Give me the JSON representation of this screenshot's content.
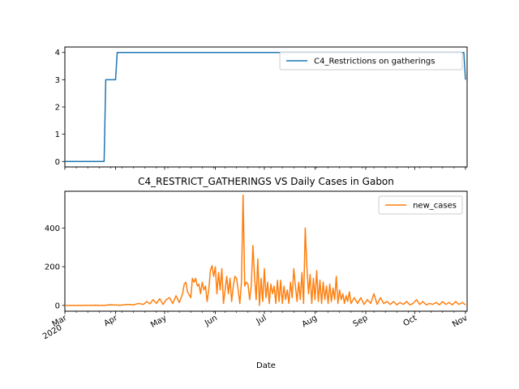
{
  "chart_data": [
    {
      "type": "line",
      "title": "",
      "xlabel": "",
      "ylabel": "",
      "ylim": [
        -0.2,
        4.2
      ],
      "yticks": [
        0,
        1,
        2,
        3,
        4
      ],
      "legend": "upper right",
      "series": [
        {
          "name": "C4_Restrictions on gatherings",
          "color": "#1f77b4",
          "points": [
            [
              "2020-03-01",
              0
            ],
            [
              "2020-03-25",
              0
            ],
            [
              "2020-03-26",
              3
            ],
            [
              "2020-04-01",
              3
            ],
            [
              "2020-04-02",
              4
            ],
            [
              "2020-10-31",
              4
            ],
            [
              "2020-11-01",
              3
            ]
          ]
        }
      ]
    },
    {
      "type": "line",
      "title": "C4_RESTRICT_GATHERINGS VS Daily Cases in Gabon",
      "xlabel": "Date",
      "ylabel": "",
      "ylim": [
        -30,
        590
      ],
      "yticks": [
        0,
        200,
        400
      ],
      "xlim": [
        "2020-03-01",
        "2020-11-02"
      ],
      "legend": "upper right",
      "x_ticks": [
        {
          "date": "2020-03-01",
          "label": "Mar",
          "sublabel": "2020"
        },
        {
          "date": "2020-04-01",
          "label": "Apr",
          "sublabel": ""
        },
        {
          "date": "2020-05-01",
          "label": "May",
          "sublabel": ""
        },
        {
          "date": "2020-06-01",
          "label": "Jun",
          "sublabel": ""
        },
        {
          "date": "2020-07-01",
          "label": "Jul",
          "sublabel": ""
        },
        {
          "date": "2020-08-01",
          "label": "Aug",
          "sublabel": ""
        },
        {
          "date": "2020-09-01",
          "label": "Sep",
          "sublabel": ""
        },
        {
          "date": "2020-10-01",
          "label": "Oct",
          "sublabel": ""
        },
        {
          "date": "2020-11-01",
          "label": "Nov",
          "sublabel": ""
        }
      ],
      "series": [
        {
          "name": "new_cases",
          "color": "#ff7f0e",
          "points": [
            [
              "2020-03-01",
              0
            ],
            [
              "2020-03-10",
              0
            ],
            [
              "2020-03-20",
              1
            ],
            [
              "2020-03-25",
              0
            ],
            [
              "2020-03-28",
              3
            ],
            [
              "2020-04-01",
              2
            ],
            [
              "2020-04-04",
              1
            ],
            [
              "2020-04-08",
              5
            ],
            [
              "2020-04-12",
              3
            ],
            [
              "2020-04-15",
              10
            ],
            [
              "2020-04-18",
              5
            ],
            [
              "2020-04-20",
              20
            ],
            [
              "2020-04-22",
              8
            ],
            [
              "2020-04-24",
              30
            ],
            [
              "2020-04-26",
              10
            ],
            [
              "2020-04-28",
              35
            ],
            [
              "2020-04-30",
              5
            ],
            [
              "2020-05-02",
              30
            ],
            [
              "2020-05-04",
              40
            ],
            [
              "2020-05-06",
              10
            ],
            [
              "2020-05-08",
              50
            ],
            [
              "2020-05-10",
              15
            ],
            [
              "2020-05-12",
              60
            ],
            [
              "2020-05-13",
              110
            ],
            [
              "2020-05-14",
              120
            ],
            [
              "2020-05-15",
              70
            ],
            [
              "2020-05-17",
              40
            ],
            [
              "2020-05-18",
              140
            ],
            [
              "2020-05-19",
              120
            ],
            [
              "2020-05-20",
              140
            ],
            [
              "2020-05-21",
              100
            ],
            [
              "2020-05-22",
              110
            ],
            [
              "2020-05-23",
              60
            ],
            [
              "2020-05-24",
              120
            ],
            [
              "2020-05-25",
              80
            ],
            [
              "2020-05-26",
              100
            ],
            [
              "2020-05-27",
              20
            ],
            [
              "2020-05-28",
              80
            ],
            [
              "2020-05-29",
              180
            ],
            [
              "2020-05-30",
              205
            ],
            [
              "2020-05-31",
              150
            ],
            [
              "2020-06-01",
              200
            ],
            [
              "2020-06-02",
              60
            ],
            [
              "2020-06-03",
              170
            ],
            [
              "2020-06-04",
              80
            ],
            [
              "2020-06-05",
              190
            ],
            [
              "2020-06-06",
              10
            ],
            [
              "2020-06-07",
              80
            ],
            [
              "2020-06-08",
              150
            ],
            [
              "2020-06-09",
              60
            ],
            [
              "2020-06-10",
              140
            ],
            [
              "2020-06-11",
              20
            ],
            [
              "2020-06-12",
              100
            ],
            [
              "2020-06-13",
              150
            ],
            [
              "2020-06-14",
              140
            ],
            [
              "2020-06-15",
              80
            ],
            [
              "2020-06-16",
              10
            ],
            [
              "2020-06-17",
              120
            ],
            [
              "2020-06-18",
              570
            ],
            [
              "2020-06-19",
              100
            ],
            [
              "2020-06-20",
              120
            ],
            [
              "2020-06-21",
              110
            ],
            [
              "2020-06-22",
              30
            ],
            [
              "2020-06-23",
              100
            ],
            [
              "2020-06-24",
              310
            ],
            [
              "2020-06-25",
              150
            ],
            [
              "2020-06-26",
              30
            ],
            [
              "2020-06-27",
              240
            ],
            [
              "2020-06-28",
              0
            ],
            [
              "2020-06-29",
              140
            ],
            [
              "2020-06-30",
              20
            ],
            [
              "2020-07-01",
              190
            ],
            [
              "2020-07-02",
              40
            ],
            [
              "2020-07-03",
              120
            ],
            [
              "2020-07-04",
              10
            ],
            [
              "2020-07-05",
              110
            ],
            [
              "2020-07-06",
              60
            ],
            [
              "2020-07-07",
              100
            ],
            [
              "2020-07-08",
              10
            ],
            [
              "2020-07-09",
              130
            ],
            [
              "2020-07-10",
              20
            ],
            [
              "2020-07-11",
              130
            ],
            [
              "2020-07-12",
              10
            ],
            [
              "2020-07-13",
              100
            ],
            [
              "2020-07-14",
              30
            ],
            [
              "2020-07-15",
              80
            ],
            [
              "2020-07-16",
              10
            ],
            [
              "2020-07-17",
              120
            ],
            [
              "2020-07-18",
              40
            ],
            [
              "2020-07-19",
              190
            ],
            [
              "2020-07-20",
              100
            ],
            [
              "2020-07-21",
              20
            ],
            [
              "2020-07-22",
              120
            ],
            [
              "2020-07-23",
              30
            ],
            [
              "2020-07-24",
              170
            ],
            [
              "2020-07-25",
              10
            ],
            [
              "2020-07-26",
              400
            ],
            [
              "2020-07-27",
              200
            ],
            [
              "2020-07-28",
              60
            ],
            [
              "2020-07-29",
              160
            ],
            [
              "2020-07-30",
              10
            ],
            [
              "2020-07-31",
              140
            ],
            [
              "2020-08-01",
              30
            ],
            [
              "2020-08-02",
              180
            ],
            [
              "2020-08-03",
              20
            ],
            [
              "2020-08-04",
              130
            ],
            [
              "2020-08-05",
              10
            ],
            [
              "2020-08-06",
              120
            ],
            [
              "2020-08-07",
              30
            ],
            [
              "2020-08-08",
              100
            ],
            [
              "2020-08-09",
              10
            ],
            [
              "2020-08-10",
              110
            ],
            [
              "2020-08-11",
              20
            ],
            [
              "2020-08-12",
              90
            ],
            [
              "2020-08-13",
              30
            ],
            [
              "2020-08-14",
              150
            ],
            [
              "2020-08-15",
              10
            ],
            [
              "2020-08-16",
              80
            ],
            [
              "2020-08-17",
              30
            ],
            [
              "2020-08-18",
              60
            ],
            [
              "2020-08-19",
              10
            ],
            [
              "2020-08-20",
              50
            ],
            [
              "2020-08-21",
              20
            ],
            [
              "2020-08-22",
              70
            ],
            [
              "2020-08-23",
              10
            ],
            [
              "2020-08-25",
              40
            ],
            [
              "2020-08-27",
              10
            ],
            [
              "2020-08-29",
              40
            ],
            [
              "2020-08-31",
              5
            ],
            [
              "2020-09-02",
              30
            ],
            [
              "2020-09-04",
              10
            ],
            [
              "2020-09-06",
              60
            ],
            [
              "2020-09-08",
              5
            ],
            [
              "2020-09-10",
              40
            ],
            [
              "2020-09-12",
              10
            ],
            [
              "2020-09-14",
              20
            ],
            [
              "2020-09-16",
              5
            ],
            [
              "2020-09-18",
              20
            ],
            [
              "2020-09-20",
              3
            ],
            [
              "2020-09-22",
              15
            ],
            [
              "2020-09-24",
              5
            ],
            [
              "2020-09-26",
              20
            ],
            [
              "2020-09-28",
              3
            ],
            [
              "2020-09-30",
              10
            ],
            [
              "2020-10-02",
              30
            ],
            [
              "2020-10-04",
              5
            ],
            [
              "2020-10-06",
              20
            ],
            [
              "2020-10-08",
              3
            ],
            [
              "2020-10-10",
              10
            ],
            [
              "2020-10-12",
              5
            ],
            [
              "2020-10-14",
              15
            ],
            [
              "2020-10-16",
              3
            ],
            [
              "2020-10-18",
              20
            ],
            [
              "2020-10-20",
              5
            ],
            [
              "2020-10-22",
              15
            ],
            [
              "2020-10-24",
              3
            ],
            [
              "2020-10-26",
              20
            ],
            [
              "2020-10-28",
              5
            ],
            [
              "2020-10-30",
              15
            ],
            [
              "2020-11-01",
              3
            ]
          ]
        }
      ]
    }
  ]
}
